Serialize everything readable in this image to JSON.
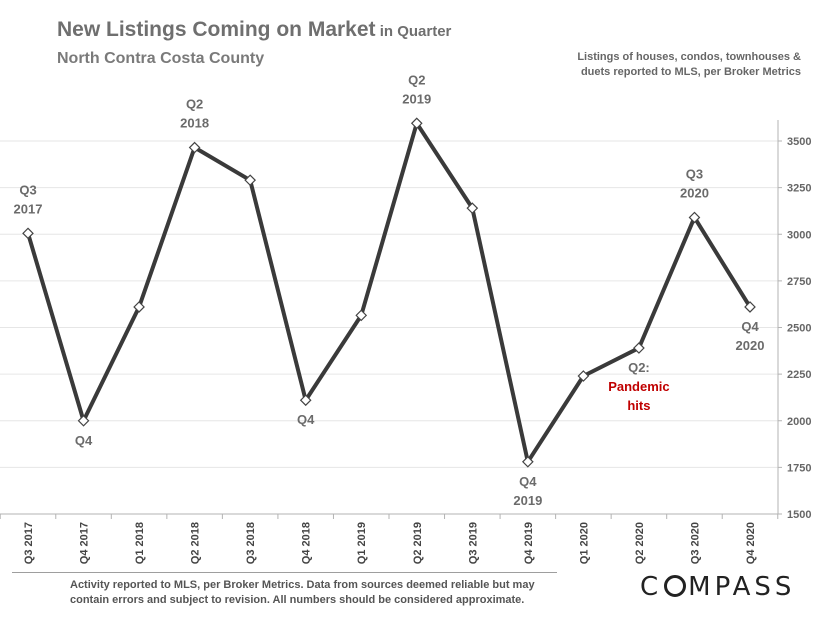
{
  "title": {
    "main": "New Listings Coming on Market",
    "suffix": " in Quarter",
    "subtitle": "North Contra Costa County"
  },
  "note": "Listings of houses, condos, townhouses & duets reported to MLS, per Broker Metrics",
  "footer": "Activity reported to MLS, per Broker Metrics. Data from sources deemed reliable but may contain errors and subject to revision. All numbers should be considered approximate.",
  "logo": {
    "before": "C",
    "after": "MPASS"
  },
  "chart_data": {
    "type": "line",
    "categories": [
      "Q3 2017",
      "Q4 2017",
      "Q1 2018",
      "Q2 2018",
      "Q3 2018",
      "Q4 2018",
      "Q1 2019",
      "Q2 2019",
      "Q3 2019",
      "Q4 2019",
      "Q1 2020",
      "Q2 2020",
      "Q3 2020",
      "Q4 2020"
    ],
    "values": [
      3005,
      2000,
      2610,
      3465,
      3290,
      2110,
      2565,
      3595,
      3140,
      1780,
      2240,
      2390,
      3090,
      2610
    ],
    "ylim": [
      1500,
      3500
    ],
    "yticks": [
      1500,
      1750,
      2000,
      2250,
      2500,
      2750,
      3000,
      3250,
      3500
    ],
    "y_axis_side": "right",
    "grid": true,
    "line_color": "#3a3a3a",
    "marker": "diamond",
    "annotations": [
      {
        "index": 0,
        "pos": "above",
        "lines": [
          "Q3",
          "2017"
        ],
        "color": "#6b6b6b"
      },
      {
        "index": 1,
        "pos": "below",
        "lines": [
          "Q4"
        ],
        "color": "#6b6b6b"
      },
      {
        "index": 3,
        "pos": "above",
        "lines": [
          "Q2",
          "2018"
        ],
        "color": "#6b6b6b"
      },
      {
        "index": 5,
        "pos": "below",
        "lines": [
          "Q4"
        ],
        "color": "#6b6b6b"
      },
      {
        "index": 7,
        "pos": "above",
        "lines": [
          "Q2",
          "2019"
        ],
        "color": "#6b6b6b"
      },
      {
        "index": 9,
        "pos": "below",
        "lines": [
          "Q4",
          "2019"
        ],
        "color": "#6b6b6b"
      },
      {
        "index": 11,
        "pos": "below",
        "lines": [
          "Q2:"
        ],
        "color": "#6b6b6b"
      },
      {
        "index": 11,
        "pos": "below2",
        "lines": [
          "Pandemic",
          "hits"
        ],
        "color": "#c00000"
      },
      {
        "index": 12,
        "pos": "above",
        "lines": [
          "Q3",
          "2020"
        ],
        "color": "#6b6b6b"
      },
      {
        "index": 13,
        "pos": "below",
        "lines": [
          "Q4",
          "2020"
        ],
        "color": "#6b6b6b"
      }
    ]
  }
}
